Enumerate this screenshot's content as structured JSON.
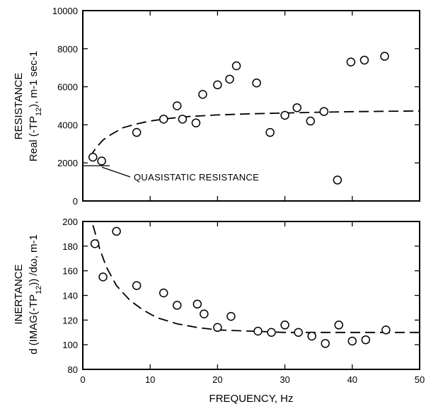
{
  "chart_data": [
    {
      "type": "scatter",
      "panel": "top",
      "ylabel_line1": "RESISTANCE",
      "ylabel_line2_prefix": "Real (-TP",
      "ylabel_line2_sub": "12",
      "ylabel_line2_suffix": "),    m-1 sec-1",
      "xlim": [
        0,
        50
      ],
      "ylim": [
        0,
        10000
      ],
      "xticks": [
        0,
        10,
        20,
        30,
        40,
        50
      ],
      "yticks": [
        0,
        2000,
        4000,
        6000,
        8000,
        10000
      ],
      "ytick_labels": [
        "0",
        "2000",
        "4000",
        "6000",
        "8000",
        "10000"
      ],
      "series": [
        {
          "kind": "points",
          "x": [
            1.5,
            2.8,
            8,
            12,
            14,
            14.8,
            16.8,
            17.8,
            20,
            21.8,
            22.8,
            25.8,
            27.8,
            30,
            31.8,
            33.8,
            35.8,
            37.8,
            39.8,
            41.8,
            44.8
          ],
          "y": [
            2300,
            2100,
            3600,
            4300,
            5000,
            4300,
            4100,
            5600,
            6100,
            6400,
            7100,
            6200,
            3600,
            4500,
            4900,
            4200,
            4700,
            1100,
            7300,
            7400,
            7600
          ]
        },
        {
          "kind": "dashed-fit",
          "x": [
            1,
            2,
            3,
            4,
            6,
            8,
            10,
            12,
            15,
            20,
            25,
            30,
            35,
            40,
            45,
            50
          ],
          "y": [
            2300,
            2800,
            3200,
            3450,
            3850,
            4050,
            4200,
            4300,
            4420,
            4520,
            4580,
            4620,
            4660,
            4690,
            4710,
            4730
          ]
        }
      ],
      "reference_line": {
        "y": 1850,
        "x": [
          0,
          4
        ]
      },
      "annotation": "QUASISTATIC RESISTANCE"
    },
    {
      "type": "scatter",
      "panel": "bottom",
      "ylabel_line1": "INERTANCE",
      "ylabel_line2_prefix": "d (IMAG(-TP",
      "ylabel_line2_sub": "12",
      "ylabel_line2_suffix": ")) /dω,   m-1",
      "xlabel": "FREQUENCY,   Hz",
      "xlim": [
        0,
        50
      ],
      "ylim": [
        80,
        200
      ],
      "xticks": [
        0,
        10,
        20,
        30,
        40,
        50
      ],
      "xtick_labels": [
        "0",
        "10",
        "20",
        "30",
        "40",
        "50"
      ],
      "yticks": [
        80,
        100,
        120,
        140,
        160,
        180,
        200
      ],
      "ytick_labels": [
        "80",
        "100",
        "120",
        "140",
        "160",
        "180",
        "200"
      ],
      "series": [
        {
          "kind": "points",
          "x": [
            1.8,
            3,
            5,
            8,
            12,
            14,
            17,
            18,
            20,
            22,
            26,
            28,
            30,
            32,
            34,
            36,
            38,
            40,
            42,
            45
          ],
          "y": [
            182,
            155,
            192,
            148,
            142,
            132,
            133,
            125,
            114,
            123,
            111,
            110,
            116,
            110,
            107,
            101,
            116,
            103,
            104,
            112
          ]
        },
        {
          "kind": "dashed-fit",
          "x": [
            1.5,
            2.5,
            3.5,
            5,
            7,
            9,
            11,
            14,
            17,
            20,
            25,
            30,
            40,
            50
          ],
          "y": [
            197,
            178,
            163,
            148,
            136,
            128,
            122,
            117,
            114,
            112,
            111,
            110,
            110,
            110
          ]
        }
      ]
    }
  ]
}
